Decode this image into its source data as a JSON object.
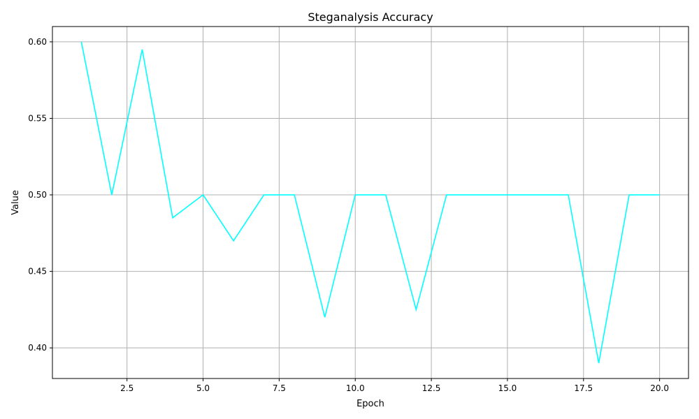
{
  "chart_data": {
    "type": "line",
    "title": "Steganalysis Accuracy",
    "xlabel": "Epoch",
    "ylabel": "Value",
    "xlim": [
      0.05,
      20.95
    ],
    "ylim": [
      0.38,
      0.61
    ],
    "xticks": [
      2.5,
      5.0,
      7.5,
      10.0,
      12.5,
      15.0,
      17.5,
      20.0
    ],
    "xtick_labels": [
      "2.5",
      "5.0",
      "7.5",
      "10.0",
      "12.5",
      "15.0",
      "17.5",
      "20.0"
    ],
    "yticks": [
      0.4,
      0.45,
      0.5,
      0.55,
      0.6
    ],
    "ytick_labels": [
      "0.40",
      "0.45",
      "0.50",
      "0.55",
      "0.60"
    ],
    "grid": true,
    "series": [
      {
        "color": "#00ffff",
        "x": [
          1,
          2,
          3,
          4,
          5,
          6,
          7,
          8,
          9,
          10,
          11,
          12,
          13,
          14,
          15,
          16,
          17,
          18,
          19,
          20
        ],
        "values": [
          0.6,
          0.5,
          0.595,
          0.485,
          0.5,
          0.47,
          0.5,
          0.5,
          0.42,
          0.5,
          0.5,
          0.425,
          0.5,
          0.5,
          0.5,
          0.5,
          0.5,
          0.39,
          0.5,
          0.5
        ]
      }
    ]
  }
}
